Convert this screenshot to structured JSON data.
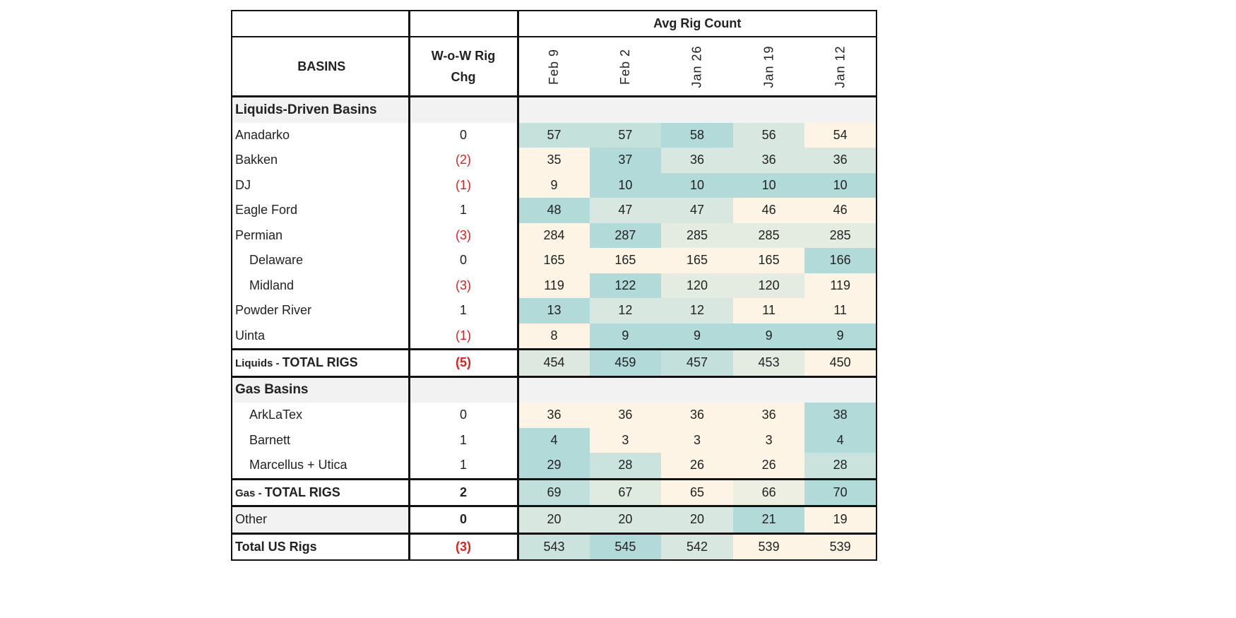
{
  "header": {
    "group_title": "Avg Rig Count",
    "basins_label": "BASINS",
    "chg_label_1": "W-o-W Rig",
    "chg_label_2": "Chg",
    "dates": [
      "Feb 9",
      "Feb 2",
      "Jan 26",
      "Jan 19",
      "Jan 12"
    ]
  },
  "colors": {
    "high": "#b2dad9",
    "low": "#fdf4e5",
    "section": "#f2f2f2",
    "negative": "#e02020"
  },
  "chart_data": {
    "type": "table",
    "title": "Avg Rig Count",
    "columns": [
      "BASINS",
      "W-o-W Rig Chg",
      "Feb 9",
      "Feb 2",
      "Jan 26",
      "Jan 19",
      "Jan 12"
    ],
    "rows": [
      {
        "kind": "section",
        "label": "Liquids-Driven Basins"
      },
      {
        "kind": "row",
        "label": "Anadarko",
        "chg": "0",
        "values": [
          57,
          57,
          58,
          56,
          54
        ]
      },
      {
        "kind": "row",
        "label": "Bakken",
        "chg": "(2)",
        "values": [
          35,
          37,
          36,
          36,
          36
        ]
      },
      {
        "kind": "row",
        "label": "DJ",
        "chg": "(1)",
        "values": [
          9,
          10,
          10,
          10,
          10
        ]
      },
      {
        "kind": "row",
        "label": "Eagle Ford",
        "chg": "1",
        "values": [
          48,
          47,
          47,
          46,
          46
        ]
      },
      {
        "kind": "row",
        "label": "Permian",
        "chg": "(3)",
        "values": [
          284,
          287,
          285,
          285,
          285
        ]
      },
      {
        "kind": "row",
        "label": "Delaware",
        "indent": true,
        "chg": "0",
        "values": [
          165,
          165,
          165,
          165,
          166
        ]
      },
      {
        "kind": "row",
        "label": "Midland",
        "indent": true,
        "chg": "(3)",
        "values": [
          119,
          122,
          120,
          120,
          119
        ]
      },
      {
        "kind": "row",
        "label": "Powder River",
        "chg": "1",
        "values": [
          13,
          12,
          12,
          11,
          11
        ]
      },
      {
        "kind": "row",
        "label": "Uinta",
        "chg": "(1)",
        "values": [
          8,
          9,
          9,
          9,
          9
        ]
      },
      {
        "kind": "total",
        "label_small": "Liquids - ",
        "label": "TOTAL RIGS",
        "chg": "(5)",
        "values": [
          454,
          459,
          457,
          453,
          450
        ]
      },
      {
        "kind": "section",
        "label": "Gas Basins"
      },
      {
        "kind": "row",
        "label": "ArkLaTex",
        "indent": true,
        "chg": "0",
        "values": [
          36,
          36,
          36,
          36,
          38
        ]
      },
      {
        "kind": "row",
        "label": "Barnett",
        "indent": true,
        "chg": "1",
        "values": [
          4,
          3,
          3,
          3,
          4
        ]
      },
      {
        "kind": "row",
        "label": "Marcellus + Utica",
        "indent": true,
        "chg": "1",
        "values": [
          29,
          28,
          26,
          26,
          28
        ]
      },
      {
        "kind": "total",
        "label_small": "Gas - ",
        "label": "TOTAL RIGS",
        "chg": "2",
        "values": [
          69,
          67,
          65,
          66,
          70
        ]
      },
      {
        "kind": "other",
        "label": "Other",
        "chg": "0",
        "values": [
          20,
          20,
          20,
          21,
          19
        ]
      },
      {
        "kind": "total",
        "label": "Total US Rigs",
        "chg": "(3)",
        "values": [
          543,
          545,
          542,
          539,
          539
        ]
      }
    ]
  }
}
